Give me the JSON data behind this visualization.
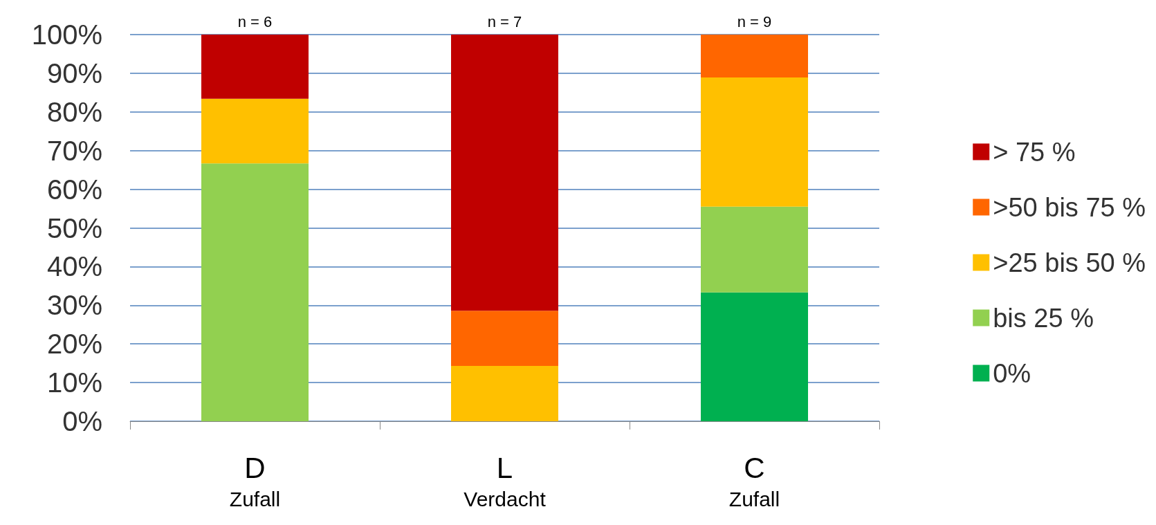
{
  "chart_data": {
    "type": "bar",
    "stacked": true,
    "categories": [
      "D\nZufall",
      "L\nVerdacht",
      "C\nZufall"
    ],
    "series": [
      {
        "name": "0%",
        "color": "#00b050",
        "values": [
          null,
          null,
          33.3
        ]
      },
      {
        "name": "bis 25 %",
        "color": "#92d050",
        "values": [
          66.7,
          null,
          22.2
        ]
      },
      {
        "name": ">25 bis 50 %",
        "color": "#ffc000",
        "values": [
          16.7,
          14.3,
          33.4
        ]
      },
      {
        "name": ">50 bis 75 %",
        "color": "#ff6600",
        "values": [
          null,
          14.3,
          11.1
        ]
      },
      {
        "name": "> 75 %",
        "color": "#c00000",
        "values": [
          16.6,
          71.4,
          null
        ]
      }
    ],
    "annotations": [
      {
        "text": "n = 6",
        "x": "D\nZufall",
        "y": 100
      },
      {
        "text": "n = 7",
        "x": "L\nVerdacht",
        "y": 100
      },
      {
        "text": "n = 9",
        "x": "C\nZufall",
        "y": 100
      }
    ],
    "ylim": [
      0,
      100
    ],
    "yticks": [
      {
        "value": 0,
        "label": "0%"
      },
      {
        "value": 10,
        "label": "10%"
      },
      {
        "value": 20,
        "label": "20%"
      },
      {
        "value": 30,
        "label": "30%"
      },
      {
        "value": 40,
        "label": "40%"
      },
      {
        "value": 50,
        "label": "50%"
      },
      {
        "value": 60,
        "label": "60%"
      },
      {
        "value": 70,
        "label": "70%"
      },
      {
        "value": 80,
        "label": "80%"
      },
      {
        "value": 90,
        "label": "90%"
      },
      {
        "value": 100,
        "label": "100%"
      }
    ],
    "grid": "y",
    "legend": "right"
  }
}
